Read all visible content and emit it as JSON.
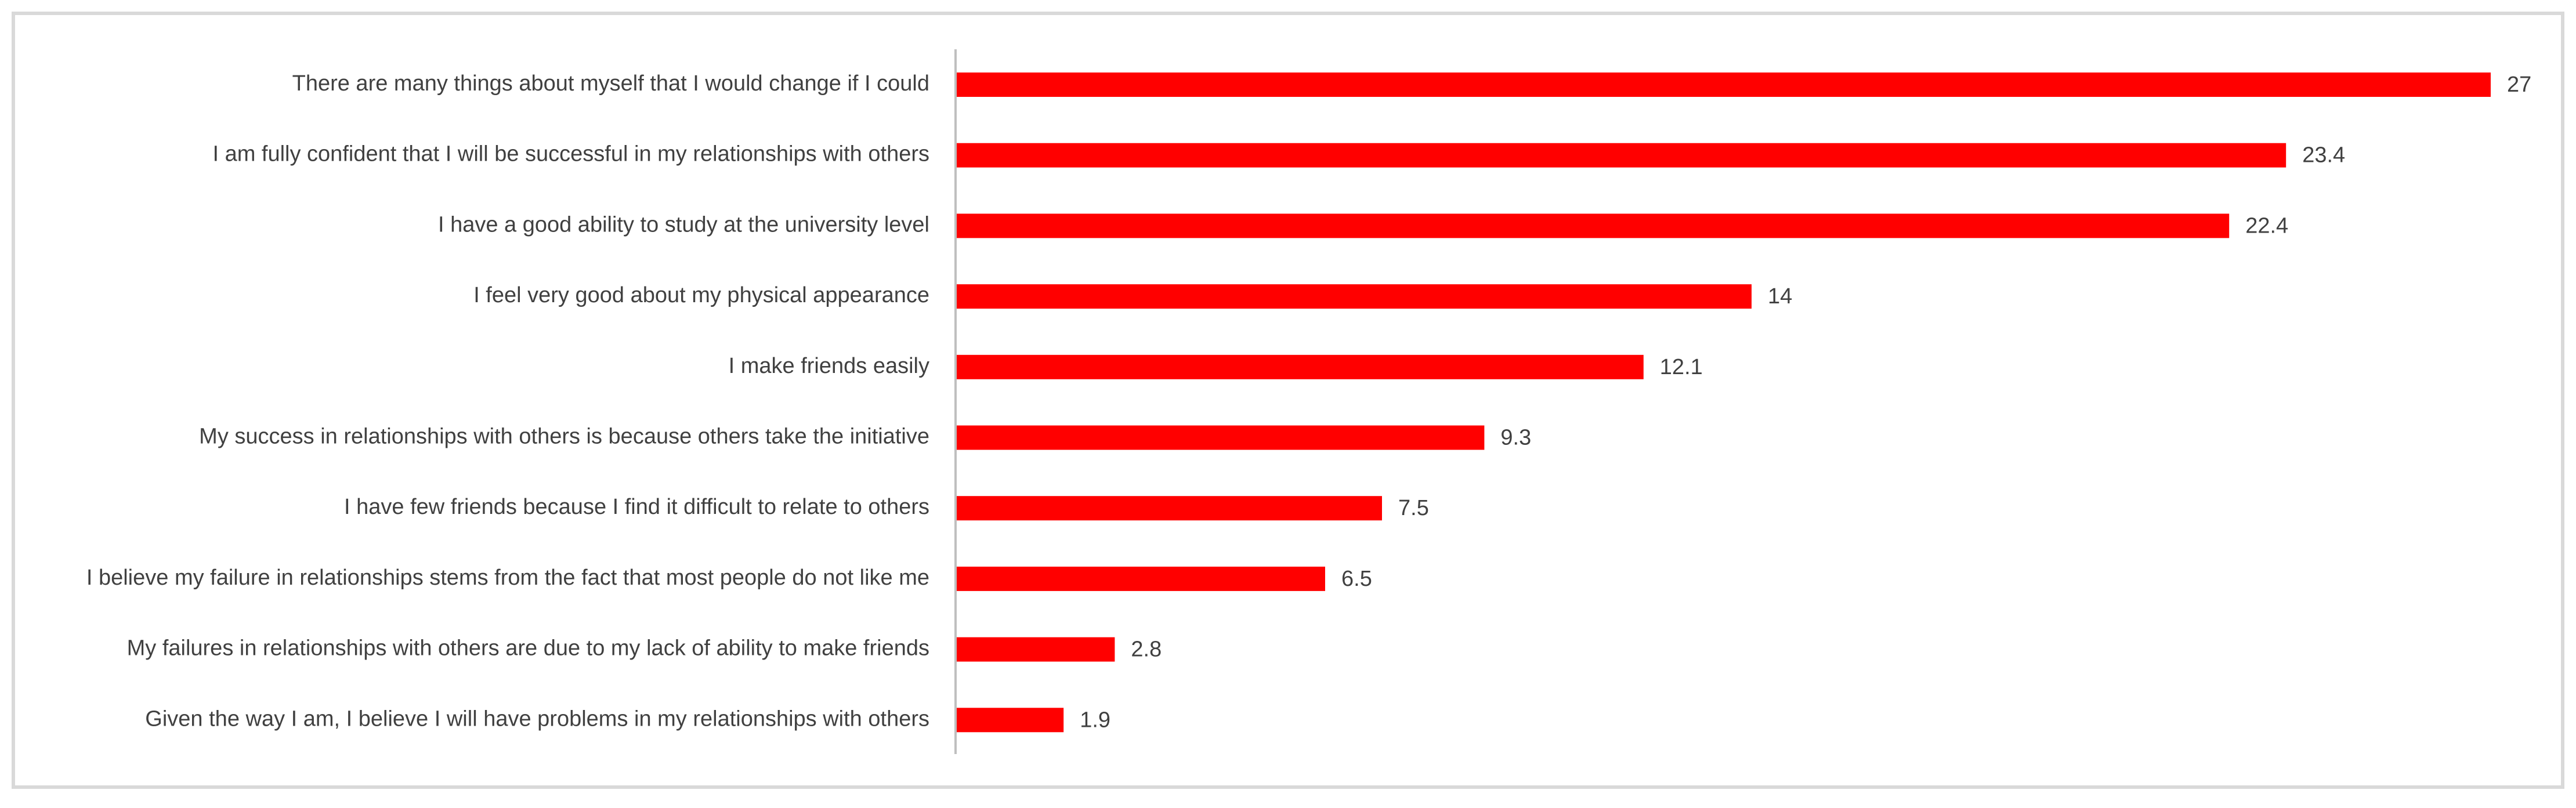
{
  "chart_data": {
    "type": "bar",
    "orientation": "horizontal",
    "categories": [
      "There are many things about myself that I would change if I could",
      "I am fully confident that I will be successful in my relationships with others",
      "I have a good ability to study at the university level",
      "I feel very good about my physical appearance",
      "I make friends easily",
      "My success in relationships with others is because others take the initiative",
      "I have few friends because I find it difficult to relate to others",
      "I believe my failure in relationships stems from the fact that most people do not like me",
      "My failures in relationships with others are due to my lack of ability to make friends",
      "Given the way I am, I believe I will have problems in my relationships with others"
    ],
    "values": [
      27,
      23.4,
      22.4,
      14,
      12.1,
      9.3,
      7.5,
      6.5,
      2.8,
      1.9
    ],
    "value_labels": [
      "27",
      "23.4",
      "22.4",
      "14",
      "12.1",
      "9.3",
      "7.5",
      "6.5",
      "2.8",
      "1.9"
    ],
    "xlim": [
      0,
      27
    ],
    "grid": false,
    "legend": "none",
    "colors": {
      "bar": "#ff0000",
      "axis": "#bfbfbf",
      "text": "#404040",
      "frame": "#d9d9d9"
    }
  }
}
